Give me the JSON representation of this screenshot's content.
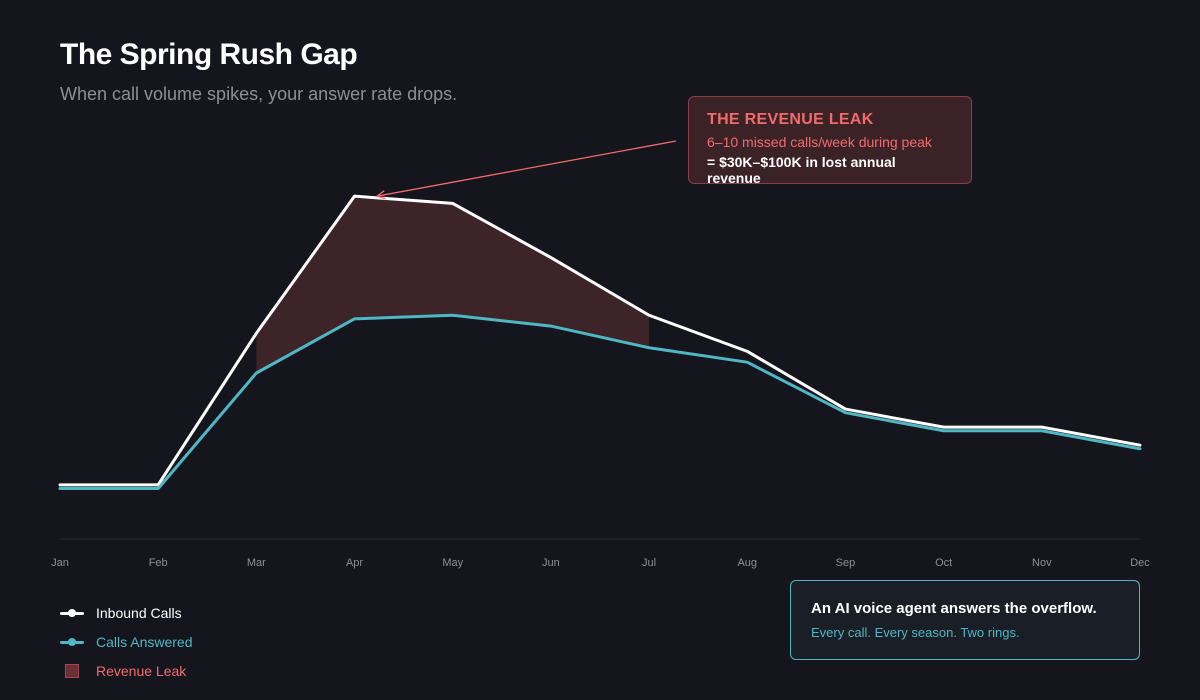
{
  "header": {
    "title": "The Spring Rush Gap",
    "subtitle": "When call volume spikes, your answer rate drops."
  },
  "callout": {
    "title": "THE REVENUE LEAK",
    "line1": "6–10 missed calls/week during peak",
    "line2": "= $30K–$100K in lost annual revenue"
  },
  "legend": {
    "items": [
      {
        "label": "Inbound Calls",
        "type": "line",
        "color": "#ffffff"
      },
      {
        "label": "Calls Answered",
        "type": "line",
        "color": "#4fb6c3"
      },
      {
        "label": "Revenue Leak",
        "type": "area",
        "color": "#7a3a42"
      }
    ]
  },
  "info_box": {
    "title": "An AI voice agent answers the overflow.",
    "subtitle": "Every call. Every season. Two rings."
  },
  "colors": {
    "background": "#15161d",
    "inbound": "#ffffff",
    "answered": "#4fb6c3",
    "leak_fill": "#3e2529",
    "leak_text": "#f26b6b",
    "axis": "#2c2e37"
  },
  "chart_data": {
    "type": "line",
    "categories": [
      "Jan",
      "Feb",
      "Mar",
      "Apr",
      "May",
      "Jun",
      "Jul",
      "Aug",
      "Sep",
      "Oct",
      "Nov",
      "Dec"
    ],
    "series": [
      {
        "name": "Inbound Calls",
        "values": [
          15,
          15,
          57,
          95,
          93,
          78,
          62,
          52,
          36,
          31,
          31,
          26
        ]
      },
      {
        "name": "Calls Answered",
        "values": [
          14,
          14,
          46,
          61,
          62,
          59,
          53,
          49,
          35,
          30,
          30,
          25
        ]
      }
    ],
    "highlight": {
      "name": "Revenue Leak",
      "from": "Mar",
      "to": "Jul"
    },
    "ylim": [
      0,
      115
    ],
    "grid": false,
    "legend_position": "bottom-left"
  }
}
